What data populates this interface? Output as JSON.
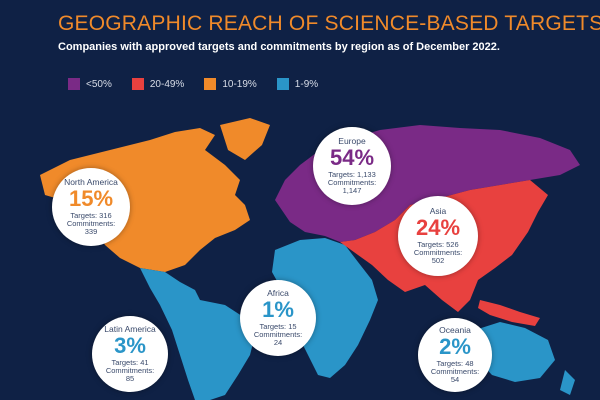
{
  "header": {
    "title": "GEOGRAPHIC REACH OF SCIENCE-BASED TARGETS",
    "subtitle": "Companies with approved targets and commitments by region as of December 2022."
  },
  "legend": [
    {
      "label": "<50%",
      "color": "#7a2a86"
    },
    {
      "label": "20-49%",
      "color": "#e8413f"
    },
    {
      "label": "10-19%",
      "color": "#f08a2a"
    },
    {
      "label": "1-9%",
      "color": "#2a95c8"
    }
  ],
  "regions": {
    "north_america": {
      "name": "North America",
      "percent": "15%",
      "targets": "Targets: 316",
      "commit_label": "Commitments:",
      "commit_value": "339",
      "color": "#f08a2a"
    },
    "europe": {
      "name": "Europe",
      "percent": "54%",
      "targets": "Targets: 1,133",
      "commit_label": "Commitments:",
      "commit_value": "1,147",
      "color": "#7a2a86"
    },
    "asia": {
      "name": "Asia",
      "percent": "24%",
      "targets": "Targets: 526",
      "commit_label": "Commitments:",
      "commit_value": "502",
      "color": "#e8413f"
    },
    "africa": {
      "name": "Africa",
      "percent": "1%",
      "targets": "Targets: 15",
      "commit_label": "Commitments:",
      "commit_value": "24",
      "color": "#2a95c8"
    },
    "latin_america": {
      "name": "Latin America",
      "percent": "3%",
      "targets": "Targets: 41",
      "commit_label": "Commitments:",
      "commit_value": "85",
      "color": "#2a95c8"
    },
    "oceania": {
      "name": "Oceania",
      "percent": "2%",
      "targets": "Targets: 48",
      "commit_label": "Commitments:",
      "commit_value": "54",
      "color": "#2a95c8"
    }
  },
  "colors": {
    "background": "#0f2145",
    "title": "#f08a2a"
  }
}
